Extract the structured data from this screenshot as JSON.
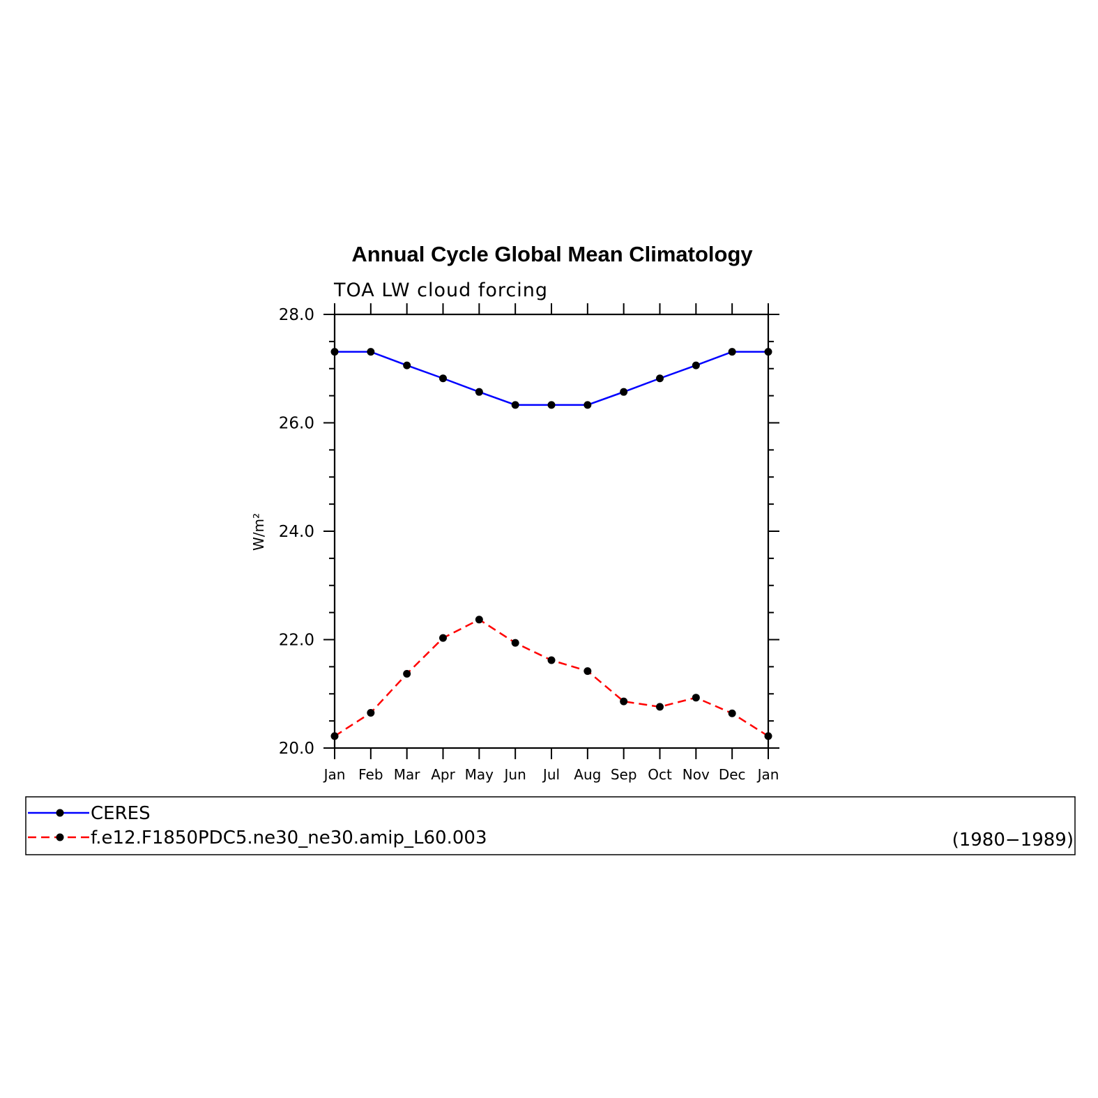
{
  "chart_data": {
    "type": "line",
    "title": "Annual Cycle Global Mean Climatology",
    "subtitle": "TOA LW cloud forcing",
    "ylabel": "W/m²",
    "xlabel": "",
    "ylim": [
      20.0,
      28.0
    ],
    "yticks": [
      "20.0",
      "22.0",
      "24.0",
      "26.0",
      "28.0"
    ],
    "yminor_step": 0.5,
    "categories": [
      "Jan",
      "Feb",
      "Mar",
      "Apr",
      "May",
      "Jun",
      "Jul",
      "Aug",
      "Sep",
      "Oct",
      "Nov",
      "Dec",
      "Jan"
    ],
    "grid": false,
    "legend_position": "bottom",
    "series": [
      {
        "name": "CERES",
        "color": "#0000ff",
        "dash": "solid",
        "values": [
          27.31,
          27.31,
          27.06,
          26.82,
          26.57,
          26.33,
          26.33,
          26.33,
          26.57,
          26.82,
          27.06,
          27.31,
          27.31
        ]
      },
      {
        "name": "f.e12.F1850PDC5.ne30_ne30.amip_L60.003",
        "color": "#ff0000",
        "dash": "dashed",
        "values": [
          20.22,
          20.65,
          21.37,
          22.03,
          22.37,
          21.94,
          21.62,
          21.42,
          20.86,
          20.76,
          20.93,
          20.64,
          20.22
        ]
      }
    ],
    "legend_note": "(1980−1989)"
  }
}
